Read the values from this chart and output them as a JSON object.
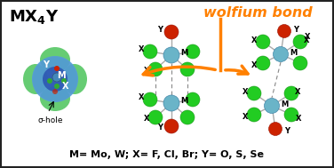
{
  "bg_color": "#ffffff",
  "border_color": "#222222",
  "title_text": "MX$_4$Y",
  "sigma_hole_text": "σ-hole",
  "wolfium_bond_text": "wolfium bond",
  "bottom_text": "M= Mo, W; X= F, Cl, Br; Y= O, S, Se",
  "label_M": "M",
  "label_X": "X",
  "label_Y": "Y",
  "color_M": "#6ab4c8",
  "color_X": "#22cc22",
  "color_Y": "#cc2200",
  "color_wolfium": "#ff8000",
  "color_arrow": "#ff8000",
  "color_blob_outer": "#33bb44",
  "color_blob_inner": "#5599dd",
  "color_bond": "#aaaaaa",
  "figsize": [
    3.76,
    1.89
  ],
  "dpi": 100
}
